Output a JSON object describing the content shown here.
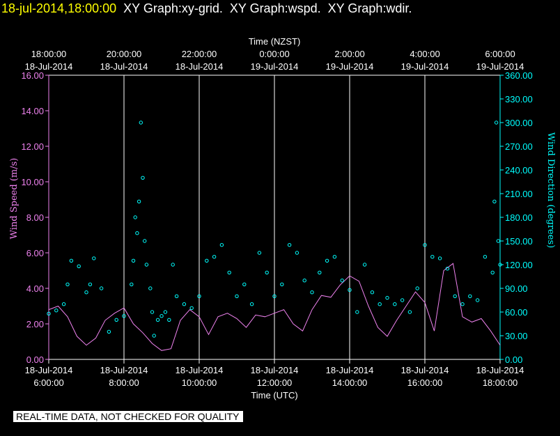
{
  "header": {
    "timestamp": "18-jul-2014,18:00:00",
    "graphs": [
      "XY Graph:xy-grid.",
      "XY Graph:wspd.",
      "XY Graph:wdir."
    ]
  },
  "note": "REAL-TIME DATA, NOT CHECKED FOR QUALITY",
  "colors": {
    "speed": "#ee82ee",
    "direction": "#00ffff",
    "grid": "#ffffff",
    "background": "#000000",
    "timestamp": "#ffff00"
  },
  "chart_data": {
    "type": "line",
    "top_axis": {
      "label": "Time (NZST)",
      "ticks": [
        {
          "time": "18:00:00",
          "date": "18-Jul-2014"
        },
        {
          "time": "20:00:00",
          "date": "18-Jul-2014"
        },
        {
          "time": "22:00:00",
          "date": "18-Jul-2014"
        },
        {
          "time": "0:00:00",
          "date": "19-Jul-2014"
        },
        {
          "time": "2:00:00",
          "date": "19-Jul-2014"
        },
        {
          "time": "4:00:00",
          "date": "19-Jul-2014"
        },
        {
          "time": "6:00:00",
          "date": "19-Jul-2014"
        }
      ]
    },
    "bottom_axis": {
      "label": "Time (UTC)",
      "ticks": [
        {
          "date": "18-Jul-2014",
          "time": "6:00:00"
        },
        {
          "date": "18-Jul-2014",
          "time": "8:00:00"
        },
        {
          "date": "18-Jul-2014",
          "time": "10:00:00"
        },
        {
          "date": "18-Jul-2014",
          "time": "12:00:00"
        },
        {
          "date": "18-Jul-2014",
          "time": "14:00:00"
        },
        {
          "date": "18-Jul-2014",
          "time": "16:00:00"
        },
        {
          "date": "18-Jul-2014",
          "time": "18:00:00"
        }
      ]
    },
    "xlim_utc_hours": [
      6,
      18
    ],
    "grid": "vertical",
    "y_left": {
      "label": "Wind Speed (m/s)",
      "ylim": [
        0,
        16
      ],
      "ticks": [
        "0.00",
        "2.00",
        "4.00",
        "6.00",
        "8.00",
        "10.00",
        "12.00",
        "14.00",
        "16.00"
      ]
    },
    "y_right": {
      "label": "Wind Direction (degrees)",
      "ylim": [
        0,
        360
      ],
      "ticks": [
        "0.00",
        "30.00",
        "60.00",
        "90.00",
        "120.00",
        "150.00",
        "180.00",
        "210.00",
        "240.00",
        "270.00",
        "300.00",
        "330.00",
        "360.00"
      ]
    },
    "series": [
      {
        "name": "Wind Speed",
        "style": "line",
        "axis": "left",
        "x_hours_utc": [
          6.0,
          6.25,
          6.5,
          6.75,
          7.0,
          7.25,
          7.5,
          7.75,
          8.0,
          8.25,
          8.5,
          8.75,
          9.0,
          9.25,
          9.5,
          9.75,
          10.0,
          10.25,
          10.5,
          10.75,
          11.0,
          11.25,
          11.5,
          11.75,
          12.0,
          12.25,
          12.5,
          12.75,
          13.0,
          13.25,
          13.5,
          13.75,
          14.0,
          14.25,
          14.5,
          14.75,
          15.0,
          15.25,
          15.5,
          15.75,
          16.0,
          16.25,
          16.5,
          16.75,
          17.0,
          17.25,
          17.5,
          17.75,
          18.0
        ],
        "values": [
          2.8,
          3.0,
          2.4,
          1.3,
          0.8,
          1.2,
          2.2,
          2.6,
          2.9,
          2.0,
          1.5,
          0.9,
          0.5,
          0.6,
          2.2,
          2.8,
          2.4,
          1.4,
          2.4,
          2.6,
          2.3,
          1.8,
          2.5,
          2.4,
          2.6,
          2.8,
          2.0,
          1.6,
          2.8,
          3.6,
          3.5,
          4.2,
          4.7,
          4.4,
          3.0,
          1.8,
          1.3,
          2.2,
          3.0,
          3.8,
          3.2,
          1.6,
          5.0,
          5.4,
          2.4,
          2.1,
          2.3,
          1.6,
          0.8
        ]
      },
      {
        "name": "Wind Direction",
        "style": "scatter",
        "axis": "right",
        "x_hours_utc": [
          6.0,
          6.2,
          6.4,
          6.5,
          6.6,
          6.8,
          7.0,
          7.1,
          7.2,
          7.4,
          7.6,
          7.8,
          8.0,
          8.2,
          8.25,
          8.3,
          8.35,
          8.4,
          8.45,
          8.5,
          8.55,
          8.6,
          8.7,
          8.75,
          8.8,
          8.9,
          9.0,
          9.1,
          9.2,
          9.3,
          9.4,
          9.6,
          9.8,
          10.0,
          10.2,
          10.4,
          10.6,
          10.8,
          11.0,
          11.2,
          11.4,
          11.6,
          11.8,
          12.0,
          12.2,
          12.4,
          12.6,
          12.8,
          13.0,
          13.2,
          13.4,
          13.6,
          13.8,
          14.0,
          14.2,
          14.4,
          14.6,
          14.8,
          15.0,
          15.2,
          15.4,
          15.6,
          15.8,
          16.0,
          16.2,
          16.4,
          16.6,
          16.8,
          17.0,
          17.2,
          17.4,
          17.6,
          17.8,
          17.85,
          17.9,
          17.95,
          18.0
        ],
        "values": [
          58,
          62,
          70,
          95,
          125,
          118,
          85,
          95,
          128,
          90,
          35,
          50,
          55,
          95,
          125,
          180,
          160,
          200,
          300,
          230,
          150,
          120,
          90,
          60,
          30,
          50,
          55,
          60,
          50,
          120,
          80,
          70,
          65,
          80,
          125,
          130,
          145,
          110,
          80,
          95,
          70,
          135,
          110,
          80,
          95,
          145,
          135,
          100,
          85,
          110,
          125,
          130,
          100,
          88,
          60,
          120,
          85,
          70,
          78,
          70,
          75,
          60,
          90,
          145,
          130,
          128,
          115,
          80,
          70,
          80,
          75,
          130,
          110,
          200,
          300,
          150,
          120
        ]
      }
    ]
  }
}
